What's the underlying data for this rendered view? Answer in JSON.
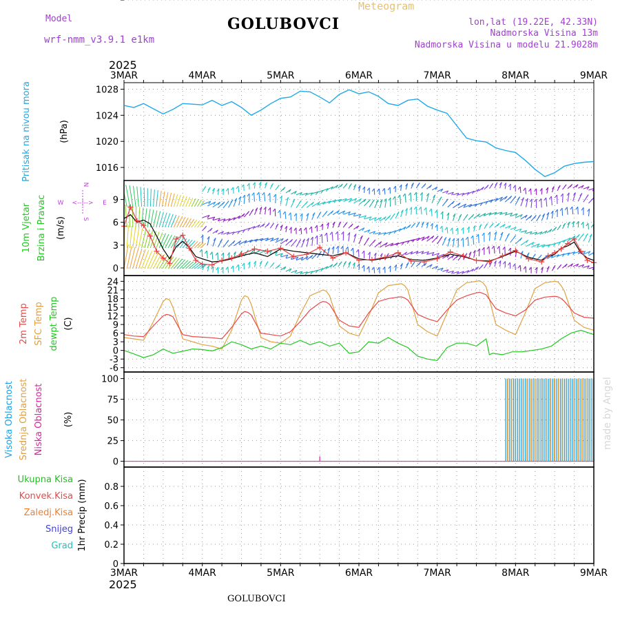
{
  "header": {
    "model_label": "Model",
    "model_name": "wrf-nmm_v3.9.1 e1km",
    "station": "GOLUBOVCI",
    "meteogram_label": "Meteogram",
    "lonlat": "lon,lat (19.22E, 42.33N)",
    "elevation": "Nadmorska Visina 13m",
    "model_elevation": "Nadmorska Visina u modelu 21.9028m"
  },
  "footer": {
    "station": "GOLUBOVCI",
    "credit": "made by Angel"
  },
  "colors": {
    "pressure": "#1fa8e8",
    "wind_speed": "#000000",
    "wind_gust": "#e84040",
    "temp_2m": "#e84848",
    "temp_sfc": "#e0a040",
    "dewpoint": "#20c820",
    "cloud_high": "#20a0e0",
    "cloud_mid": "#e0a040",
    "cloud_low": "#e020a0",
    "grid": "#999999"
  },
  "chart_data": [
    {
      "type": "line",
      "panel": "pressure",
      "title": "",
      "year": "2025",
      "xlabels": [
        "3MAR",
        "4MAR",
        "5MAR",
        "6MAR",
        "7MAR",
        "8MAR",
        "9MAR"
      ],
      "xlim": [
        0,
        144
      ],
      "ylim": [
        1014,
        1029
      ],
      "yticks": [
        1016,
        1020,
        1024,
        1028
      ],
      "ylabel_color": "Pritisak na nivou mora",
      "ylabel_unit": "(hPa)",
      "grid": true,
      "series": [
        {
          "color_key": "pressure",
          "x": [
            0,
            3,
            6,
            9,
            12,
            15,
            18,
            21,
            24,
            27,
            30,
            33,
            36,
            39,
            42,
            45,
            48,
            51,
            54,
            57,
            60,
            63,
            66,
            69,
            72,
            75,
            78,
            81,
            84,
            87,
            90,
            93,
            96,
            99,
            102,
            105,
            108,
            111,
            114,
            117,
            120,
            123,
            126,
            129,
            132,
            135,
            138,
            141,
            144
          ],
          "y": [
            1025.5,
            1025.2,
            1025.8,
            1025.0,
            1024.2,
            1024.9,
            1025.8,
            1025.7,
            1025.6,
            1026.3,
            1025.5,
            1026.1,
            1025.2,
            1024.0,
            1024.8,
            1025.8,
            1026.6,
            1026.8,
            1027.7,
            1027.6,
            1026.8,
            1025.9,
            1027.2,
            1027.9,
            1027.3,
            1027.6,
            1026.9,
            1025.8,
            1025.5,
            1026.3,
            1026.5,
            1025.4,
            1024.8,
            1024.3,
            1022.4,
            1020.5,
            1020.1,
            1019.9,
            1019.0,
            1018.6,
            1018.3,
            1017.1,
            1015.7,
            1014.6,
            1015.2,
            1016.2,
            1016.6,
            1016.8,
            1016.9
          ]
        }
      ]
    },
    {
      "type": "line",
      "panel": "wind",
      "xlim": [
        0,
        144
      ],
      "ylim": [
        -1,
        11.5
      ],
      "yticks": [
        0,
        3,
        6,
        9
      ],
      "ylabel_color_1": "10m Vjetar",
      "ylabel_color_2": "Brzina i Pravac",
      "ylabel_unit": "(m/s)",
      "compass": {
        "n": "N",
        "s": "S",
        "e": "E",
        "w": "W",
        "arrows": "<--|-->"
      },
      "grid": true,
      "series": [
        {
          "color_key": "wind_speed",
          "x": [
            0,
            2,
            4,
            6,
            8,
            10,
            12,
            14,
            16,
            18,
            20,
            22,
            24,
            27,
            30,
            33,
            36,
            40,
            44,
            48,
            52,
            56,
            60,
            64,
            68,
            72,
            76,
            80,
            84,
            88,
            92,
            96,
            100,
            104,
            108,
            112,
            116,
            120,
            124,
            128,
            130,
            132,
            134,
            136,
            138,
            140,
            142,
            144
          ],
          "y": [
            6.5,
            7.0,
            6.0,
            6.3,
            5.8,
            4.2,
            2.5,
            1.2,
            2.8,
            3.5,
            2.7,
            1.5,
            1.2,
            0.8,
            0.9,
            1.2,
            1.6,
            2.0,
            1.5,
            2.5,
            2.2,
            2.0,
            1.8,
            1.6,
            2.0,
            1.2,
            1.0,
            1.3,
            1.6,
            1.1,
            1.0,
            1.3,
            1.8,
            1.5,
            1.0,
            0.9,
            1.5,
            2.2,
            1.4,
            1.0,
            1.5,
            1.8,
            2.6,
            2.9,
            3.4,
            2.0,
            1.3,
            1.0
          ]
        },
        {
          "color_key": "wind_gust",
          "x": [
            0,
            2,
            4,
            6,
            8,
            10,
            12,
            14,
            16,
            18,
            20,
            22,
            24,
            27,
            30,
            33,
            36,
            40,
            44,
            48,
            52,
            56,
            60,
            64,
            68,
            72,
            76,
            80,
            84,
            88,
            92,
            96,
            100,
            104,
            108,
            112,
            116,
            120,
            124,
            128,
            130,
            132,
            134,
            136,
            138,
            140,
            142,
            144
          ],
          "y": [
            5.5,
            8.0,
            6.2,
            5.6,
            4.2,
            2.2,
            1.3,
            0.6,
            3.8,
            4.3,
            2.6,
            1.0,
            0.5,
            0.4,
            1.0,
            1.3,
            1.8,
            2.5,
            2.2,
            2.6,
            1.5,
            1.8,
            2.7,
            1.3,
            2.0,
            1.0,
            1.1,
            1.4,
            2.0,
            0.9,
            0.8,
            1.2,
            2.1,
            1.6,
            1.0,
            0.8,
            1.6,
            2.3,
            1.2,
            0.8,
            1.6,
            2.0,
            2.5,
            3.2,
            3.8,
            2.2,
            1.0,
            0.7
          ]
        }
      ]
    },
    {
      "type": "line",
      "panel": "temperature",
      "xlim": [
        0,
        144
      ],
      "ylim": [
        -7.5,
        26
      ],
      "yticks": [
        -6,
        -3,
        0,
        3,
        6,
        9,
        12,
        15,
        18,
        21,
        24
      ],
      "ylabel_2m": "2m Temp",
      "ylabel_sfc": "SFC Temp",
      "ylabel_dew": "dewpt Temp",
      "ylabel_unit": "(C)",
      "grid": true,
      "series": [
        {
          "color_key": "temp_2m",
          "x": [
            0,
            3,
            6,
            9,
            12,
            13,
            14,
            15,
            18,
            21,
            24,
            27,
            30,
            33,
            36,
            37,
            38,
            39,
            42,
            45,
            48,
            51,
            54,
            57,
            60,
            61,
            62,
            63,
            66,
            69,
            72,
            75,
            78,
            81,
            84,
            85,
            86,
            87,
            90,
            93,
            96,
            99,
            102,
            105,
            108,
            109,
            110,
            111,
            114,
            117,
            120,
            123,
            126,
            129,
            132,
            133,
            134,
            135,
            138,
            141,
            144
          ],
          "y": [
            5.5,
            5.0,
            4.8,
            8.5,
            12.0,
            12.5,
            12.3,
            11.7,
            5.5,
            4.8,
            4.6,
            4.4,
            4.0,
            8.0,
            12.7,
            13.5,
            13.2,
            12.3,
            6.0,
            5.5,
            5.0,
            6.5,
            10.0,
            14.0,
            16.5,
            17.0,
            16.8,
            16.0,
            10.5,
            8.5,
            8.0,
            13.0,
            17.0,
            18.0,
            18.5,
            18.6,
            18.2,
            17.5,
            12.5,
            11.0,
            10.0,
            14.0,
            17.5,
            19.0,
            20.0,
            20.2,
            19.8,
            19.3,
            14.5,
            13.0,
            12.0,
            14.0,
            17.5,
            18.5,
            18.8,
            18.6,
            18.0,
            17.0,
            13.0,
            11.5,
            11.2
          ]
        },
        {
          "color_key": "temp_sfc",
          "x": [
            0,
            3,
            6,
            9,
            12,
            13,
            14,
            15,
            18,
            21,
            24,
            27,
            30,
            33,
            36,
            37,
            38,
            39,
            42,
            45,
            48,
            51,
            54,
            57,
            60,
            61,
            62,
            63,
            66,
            69,
            72,
            75,
            78,
            81,
            84,
            85,
            86,
            87,
            90,
            93,
            96,
            99,
            102,
            105,
            108,
            109,
            110,
            111,
            114,
            117,
            120,
            123,
            126,
            129,
            132,
            133,
            134,
            135,
            138,
            141,
            144
          ],
          "y": [
            4.5,
            4.0,
            3.5,
            10.0,
            17.0,
            18.0,
            17.5,
            15.0,
            4.0,
            3.0,
            2.0,
            1.5,
            0.5,
            7.0,
            17.5,
            19.0,
            18.5,
            16.0,
            4.5,
            3.0,
            2.5,
            5.0,
            12.5,
            19.0,
            20.5,
            21.0,
            20.6,
            19.0,
            8.5,
            6.0,
            5.0,
            12.0,
            20.0,
            22.5,
            23.0,
            23.2,
            22.5,
            21.0,
            9.0,
            6.5,
            5.0,
            13.0,
            21.0,
            23.5,
            24.0,
            24.2,
            23.5,
            22.0,
            9.0,
            7.0,
            5.5,
            13.0,
            21.5,
            23.5,
            24.0,
            23.8,
            22.5,
            20.5,
            10.5,
            8.0,
            7.0
          ]
        },
        {
          "color_key": "dewpoint",
          "x": [
            0,
            3,
            6,
            9,
            12,
            15,
            18,
            21,
            24,
            27,
            30,
            33,
            36,
            39,
            42,
            45,
            48,
            51,
            54,
            57,
            60,
            63,
            66,
            69,
            72,
            75,
            78,
            81,
            84,
            87,
            90,
            93,
            96,
            99,
            102,
            105,
            108,
            111,
            112,
            113,
            116,
            119,
            122,
            125,
            128,
            131,
            134,
            137,
            140,
            144
          ],
          "y": [
            0.0,
            -1.2,
            -2.5,
            -1.5,
            0.5,
            -1.0,
            -0.3,
            0.5,
            0.3,
            -0.2,
            1.0,
            3.0,
            2.0,
            0.5,
            1.5,
            0.5,
            2.5,
            2.0,
            3.5,
            2.0,
            3.0,
            1.5,
            2.5,
            -1.0,
            -0.5,
            3.0,
            2.5,
            4.5,
            2.5,
            1.0,
            -2.0,
            -3.0,
            -3.5,
            1.0,
            2.5,
            2.5,
            1.5,
            4.0,
            -1.5,
            -1.0,
            -1.5,
            -0.5,
            -0.5,
            0.0,
            0.5,
            1.5,
            4.0,
            6.0,
            7.0,
            5.5
          ]
        }
      ]
    },
    {
      "type": "bar",
      "panel": "cloud",
      "xlim": [
        0,
        144
      ],
      "ylim": [
        -7,
        108
      ],
      "yticks": [
        0,
        25,
        50,
        75,
        100
      ],
      "ylabel_high": "Visoka Oblacnost",
      "ylabel_mid": "Srednja Oblacnost",
      "ylabel_low": "Niska Oblacnost",
      "ylabel_unit": "(%)",
      "grid": true,
      "low_spike": {
        "x": 60,
        "value": 6
      },
      "high_cloud_bars": {
        "x_start": 117,
        "x_end": 144,
        "step": 0.6,
        "value": 100
      },
      "mid_cloud_bars": {
        "x_start": 117.5,
        "x_end": 144,
        "step": 1.2,
        "value": 100
      }
    },
    {
      "type": "line",
      "panel": "precip",
      "xlim": [
        0,
        144
      ],
      "ylim": [
        0,
        1.0
      ],
      "yticks": [
        0,
        0.2,
        0.4,
        0.6,
        0.8
      ],
      "ytick_labels": [
        "0",
        "0.2",
        "0.4",
        "0.6",
        "0.8"
      ],
      "legend": [
        "Ukupna Kisa",
        "Konvek.Kisa",
        "Zaledj.Kisa",
        "Snijeg",
        "Grad"
      ],
      "legend_colors": [
        "#20c020",
        "#e84848",
        "#f08030",
        "#4040e0",
        "#20c0c0"
      ],
      "ylabel_unit": "1hr Precip (mm)",
      "grid": true,
      "series": []
    }
  ]
}
